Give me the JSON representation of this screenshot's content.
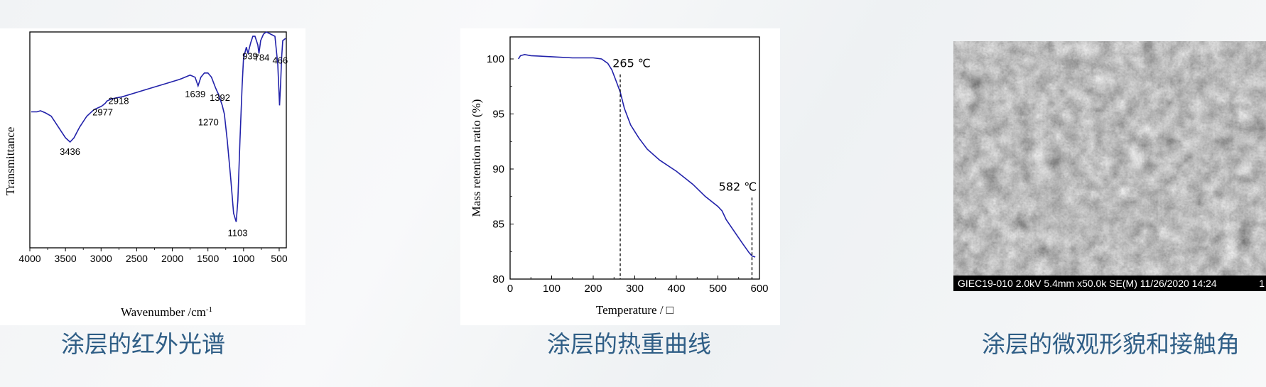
{
  "captions": {
    "ir": "涂层的红外光谱",
    "tga": "涂层的热重曲线",
    "sem": "涂层的微观形貌和接触角"
  },
  "sem": {
    "info_bar": "GIEC19-010 2.0kV 5.4mm x50.0k SE(M) 11/26/2020 14:24",
    "bar_fragment": "1"
  },
  "chart_data": [
    {
      "type": "line",
      "name": "ir",
      "title": "",
      "xlabel": "Wavenumber /cm",
      "xlabel_sup": "-1",
      "ylabel": "Transmittance",
      "xlim": [
        4000,
        400
      ],
      "x_reversed": true,
      "ylim": [
        0,
        100
      ],
      "y_ticks_shown": false,
      "xticks": [
        4000,
        3500,
        3000,
        2500,
        2000,
        1500,
        1000,
        500
      ],
      "series": [
        {
          "color": "#2222aa",
          "points": [
            [
              3980,
              63
            ],
            [
              3900,
              63
            ],
            [
              3850,
              63.5
            ],
            [
              3780,
              62.5
            ],
            [
              3700,
              61
            ],
            [
              3600,
              56
            ],
            [
              3500,
              51
            ],
            [
              3436,
              49
            ],
            [
              3380,
              51
            ],
            [
              3300,
              56
            ],
            [
              3200,
              61
            ],
            [
              3100,
              64
            ],
            [
              3000,
              65.5
            ],
            [
              2977,
              66
            ],
            [
              2940,
              67
            ],
            [
              2918,
              68
            ],
            [
              2850,
              69
            ],
            [
              2700,
              70
            ],
            [
              2500,
              72
            ],
            [
              2300,
              74
            ],
            [
              2100,
              76
            ],
            [
              1900,
              78
            ],
            [
              1750,
              80
            ],
            [
              1680,
              79
            ],
            [
              1639,
              75
            ],
            [
              1600,
              79
            ],
            [
              1550,
              81
            ],
            [
              1500,
              81
            ],
            [
              1450,
              79
            ],
            [
              1392,
              74
            ],
            [
              1350,
              71
            ],
            [
              1300,
              66
            ],
            [
              1270,
              62
            ],
            [
              1230,
              50
            ],
            [
              1180,
              32
            ],
            [
              1140,
              16
            ],
            [
              1103,
              12
            ],
            [
              1080,
              22
            ],
            [
              1050,
              50
            ],
            [
              1020,
              75
            ],
            [
              1000,
              88
            ],
            [
              960,
              93
            ],
            [
              939,
              90
            ],
            [
              900,
              95
            ],
            [
              870,
              98
            ],
            [
              840,
              98
            ],
            [
              800,
              94
            ],
            [
              784,
              90
            ],
            [
              760,
              96
            ],
            [
              720,
              99
            ],
            [
              680,
              100
            ],
            [
              620,
              99
            ],
            [
              560,
              98
            ],
            [
              520,
              85
            ],
            [
              495,
              66
            ],
            [
              480,
              76
            ],
            [
              466,
              88
            ],
            [
              450,
              96
            ],
            [
              410,
              97
            ]
          ]
        }
      ],
      "annotations": [
        {
          "text": "3436",
          "x": 3436,
          "y": 49
        },
        {
          "text": "2977",
          "x": 2977,
          "y": 66
        },
        {
          "text": "2918",
          "x": 2918,
          "y": 68
        },
        {
          "text": "1639",
          "x": 1639,
          "y": 75
        },
        {
          "text": "1392",
          "x": 1392,
          "y": 74
        },
        {
          "text": "1270",
          "x": 1270,
          "y": 62
        },
        {
          "text": "1103",
          "x": 1103,
          "y": 12
        },
        {
          "text": "939",
          "x": 939,
          "y": 90
        },
        {
          "text": "784",
          "x": 784,
          "y": 90
        },
        {
          "text": "466",
          "x": 466,
          "y": 88
        }
      ],
      "grid": false
    },
    {
      "type": "line",
      "name": "tga",
      "title": "",
      "xlabel": "Temperature / □",
      "ylabel": "Mass retention ratio (%)",
      "xlim": [
        0,
        600
      ],
      "ylim": [
        80,
        102
      ],
      "xticks": [
        0,
        100,
        200,
        300,
        400,
        500,
        600
      ],
      "yticks": [
        80,
        85,
        90,
        95,
        100
      ],
      "series": [
        {
          "color": "#2222aa",
          "points": [
            [
              20,
              100
            ],
            [
              25,
              100.3
            ],
            [
              35,
              100.4
            ],
            [
              50,
              100.3
            ],
            [
              100,
              100.2
            ],
            [
              150,
              100.1
            ],
            [
              200,
              100.1
            ],
            [
              220,
              100
            ],
            [
              235,
              99.6
            ],
            [
              245,
              99
            ],
            [
              255,
              98
            ],
            [
              265,
              97
            ],
            [
              275,
              95.5
            ],
            [
              290,
              94
            ],
            [
              310,
              92.8
            ],
            [
              330,
              91.8
            ],
            [
              360,
              90.8
            ],
            [
              400,
              89.8
            ],
            [
              440,
              88.6
            ],
            [
              470,
              87.5
            ],
            [
              500,
              86.6
            ],
            [
              510,
              86.2
            ],
            [
              520,
              85.4
            ],
            [
              540,
              84.3
            ],
            [
              560,
              83.2
            ],
            [
              575,
              82.4
            ],
            [
              582,
              82.1
            ],
            [
              590,
              82
            ]
          ]
        }
      ],
      "markers": [
        {
          "x": 265,
          "label": "265 ℃",
          "y_top": 98.6
        },
        {
          "x": 582,
          "label": "582 ℃",
          "y_top": 87.4
        }
      ],
      "grid": false
    }
  ]
}
